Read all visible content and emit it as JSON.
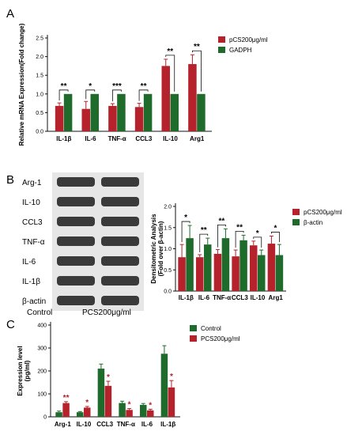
{
  "figure": {
    "panels": [
      "A",
      "B",
      "C"
    ]
  },
  "colors": {
    "red": "#b5222b",
    "green": "#1f6b2c",
    "axis": "#111111",
    "blot_bg": "#e6e6e6",
    "band": "#3a3a3a"
  },
  "blot": {
    "labels": [
      "Arg-1",
      "IL-10",
      "CCL3",
      "TNF-α",
      "IL-6",
      "IL-1β",
      "β-actin"
    ],
    "conditions": [
      "Control",
      "PCS200μg/ml"
    ]
  },
  "chart_data": [
    {
      "type": "bar",
      "panel": "A",
      "categories": [
        "IL-1β",
        "IL-6",
        "TNF-α",
        "CCL3",
        "IL-10",
        "Arg1"
      ],
      "series": [
        {
          "name": "pCS200μg/ml",
          "color": "#b5222b",
          "values": [
            0.68,
            0.6,
            0.68,
            0.65,
            1.75,
            1.8
          ],
          "errors": [
            0.08,
            0.2,
            0.06,
            0.1,
            0.18,
            0.25
          ]
        },
        {
          "name": "GADPH",
          "color": "#1f6b2c",
          "values": [
            1.0,
            1.0,
            1.0,
            1.0,
            1.0,
            1.0
          ],
          "errors": [
            0.0,
            0.0,
            0.0,
            0.0,
            0.0,
            0.0
          ]
        }
      ],
      "significance": [
        "**",
        "*",
        "***",
        "**",
        "**",
        "**"
      ],
      "ylabel": "Relative mRNA Expression(Fold change)",
      "ylim": [
        0,
        2.5
      ],
      "yticks": [
        "0.0",
        "0.5",
        "1.0",
        "1.5",
        "2.0",
        "2.5"
      ],
      "legend": "top-right"
    },
    {
      "type": "bar",
      "panel": "B",
      "categories": [
        "IL-1β",
        "IL-6",
        "TNF-α",
        "CCL3",
        "IL-10",
        "Arg1"
      ],
      "series": [
        {
          "name": "pCS200μg/ml",
          "color": "#b5222b",
          "values": [
            0.8,
            0.8,
            0.88,
            0.82,
            1.08,
            1.12
          ],
          "errors": [
            0.3,
            0.06,
            0.1,
            0.15,
            0.1,
            0.18
          ]
        },
        {
          "name": "β-actin",
          "color": "#1f6b2c",
          "values": [
            1.25,
            1.1,
            1.25,
            1.2,
            0.85,
            0.85
          ],
          "errors": [
            0.3,
            0.15,
            0.22,
            0.12,
            0.12,
            0.25
          ]
        }
      ],
      "significance": [
        "*",
        "**",
        "**",
        "**",
        "*",
        "*"
      ],
      "ylabel": "Densitometric Analysis (Fold over β-actin)",
      "ylim": [
        0,
        2.0
      ],
      "yticks": [
        "0.0",
        "0.5",
        "1.0",
        "1.5",
        "2.0"
      ],
      "legend": "right"
    },
    {
      "type": "bar",
      "panel": "C",
      "categories": [
        "Arg-1",
        "IL-10",
        "CCL3",
        "TNF-α",
        "IL-6",
        "IL-1β"
      ],
      "series": [
        {
          "name": "Control",
          "color": "#1f6b2c",
          "values": [
            20,
            20,
            210,
            60,
            52,
            275
          ],
          "errors": [
            5,
            3,
            20,
            8,
            6,
            35
          ]
        },
        {
          "name": "PCS200μg/ml",
          "color": "#b5222b",
          "values": [
            60,
            40,
            135,
            30,
            28,
            128
          ],
          "errors": [
            6,
            5,
            20,
            6,
            5,
            30
          ]
        }
      ],
      "significance": [
        "**",
        "*",
        "*",
        "*",
        "*",
        "*"
      ],
      "ylabel": "Expression level (pg/ml)",
      "ylim": [
        0,
        400
      ],
      "yticks": [
        "0",
        "100",
        "200",
        "300",
        "400"
      ],
      "legend": "top-right"
    }
  ]
}
